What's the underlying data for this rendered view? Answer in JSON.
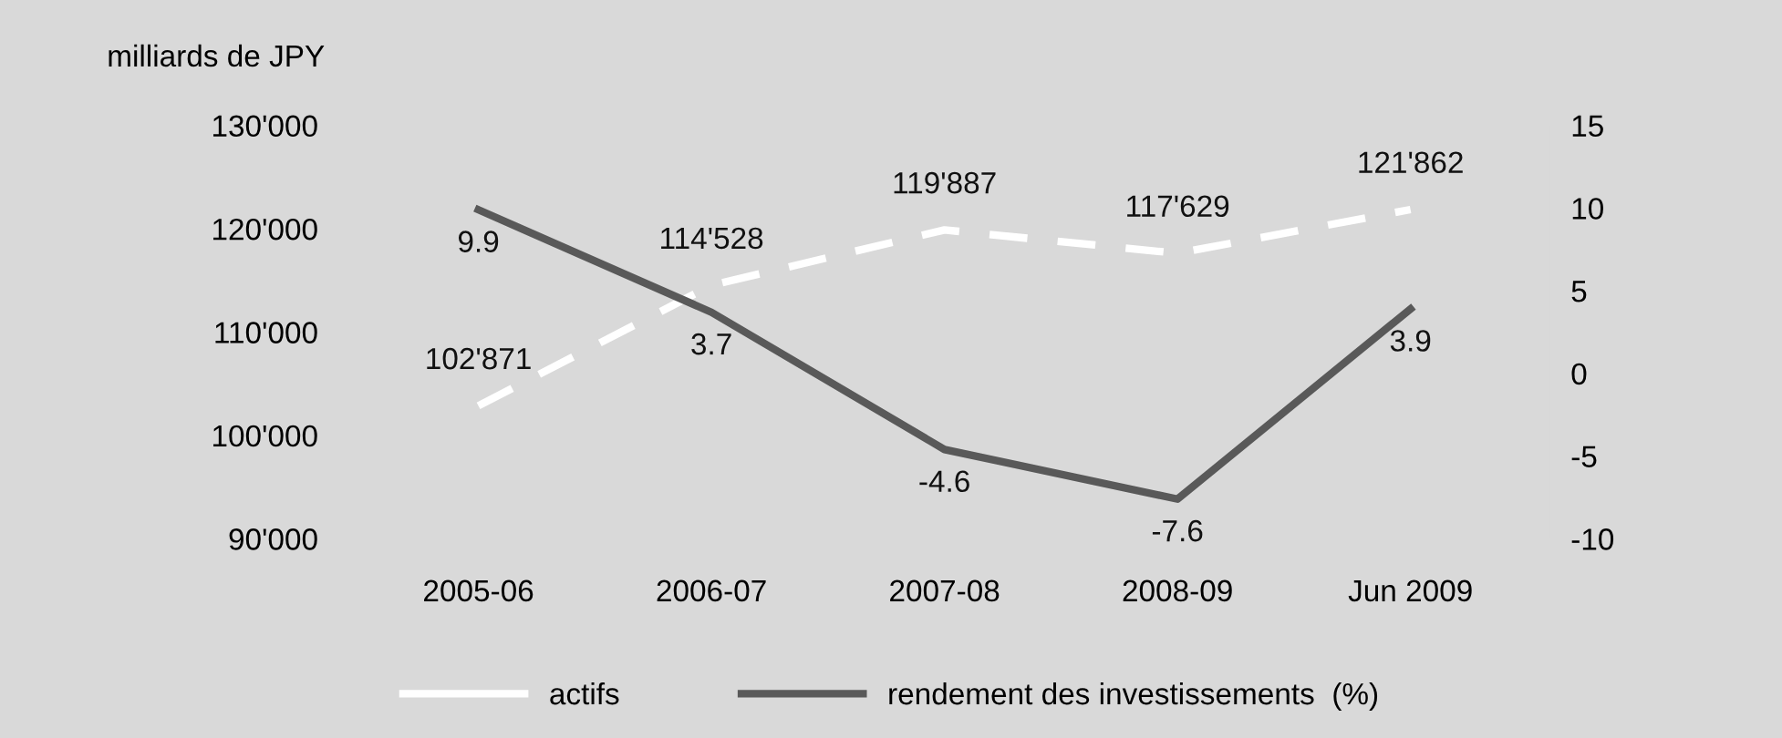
{
  "chart_data": {
    "type": "line",
    "ylabel": "milliards de JPY",
    "categories": [
      "2005-06",
      "2006-07",
      "2007-08",
      "2008-09",
      "Jun 2009"
    ],
    "series": [
      {
        "name": "actifs",
        "color": "#ffffff",
        "line_style": "dashed",
        "values": [
          102871,
          114528,
          119887,
          117629,
          121862
        ],
        "value_labels": [
          "102'871",
          "114'528",
          "119'887",
          "117'629",
          "121'862"
        ]
      },
      {
        "name": "rendement des investissements  (%)",
        "color": "#595959",
        "line_style": "solid",
        "axis": "y2",
        "values": [
          9.9,
          3.7,
          -4.6,
          -7.6,
          3.9
        ],
        "value_labels": [
          "9.9",
          "3.7",
          "-4.6",
          "-7.6",
          "3.9"
        ]
      }
    ],
    "ylim": [
      90000,
      130000
    ],
    "yticks": [
      {
        "value": 90000,
        "label": "90'000"
      },
      {
        "value": 100000,
        "label": "100'000"
      },
      {
        "value": 110000,
        "label": "110'000"
      },
      {
        "value": 120000,
        "label": "120'000"
      },
      {
        "value": 130000,
        "label": "130'000"
      }
    ],
    "y2lim": [
      -10,
      15
    ],
    "y2ticks": [
      -10,
      -5,
      0,
      5,
      10,
      15
    ],
    "grid": false,
    "legend": "bottom",
    "marker": "none"
  }
}
